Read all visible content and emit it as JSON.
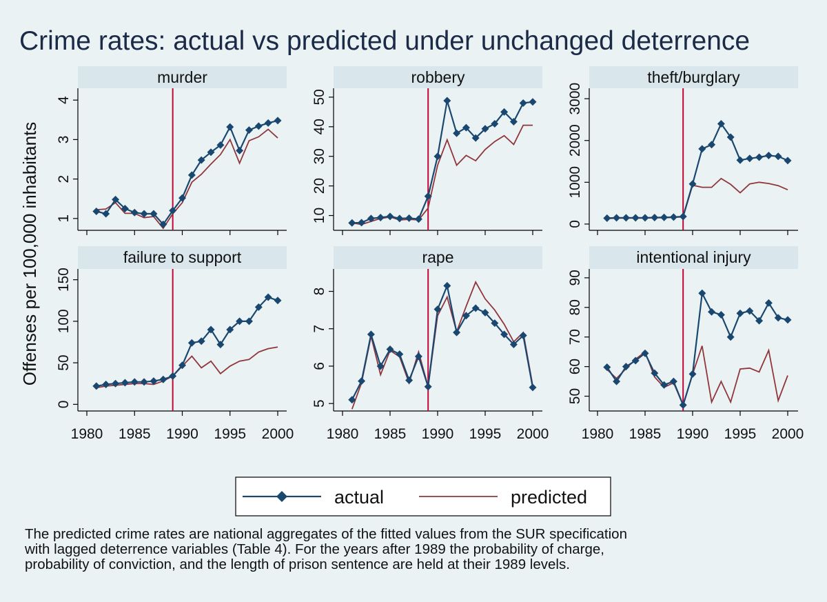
{
  "chart_data": {
    "type": "line",
    "title": "Crime  rates: actual vs predicted under unchanged deterrence",
    "ylabel": "Offenses per  100,000 inhabitants",
    "xlabel": "",
    "reference_line_x": 1989,
    "legend": {
      "placement": "bottom",
      "entries": [
        "actual",
        "predicted"
      ]
    },
    "colors": {
      "actual": "#1a476f",
      "predicted": "#90353b",
      "vline": "#c10534",
      "strip": "#d9e6eb",
      "background": "#eaf2f3"
    },
    "x": [
      1981,
      1982,
      1983,
      1984,
      1985,
      1986,
      1987,
      1988,
      1989,
      1990,
      1991,
      1992,
      1993,
      1994,
      1995,
      1996,
      1997,
      1998,
      1999,
      2000
    ],
    "xticks": [
      1980,
      1985,
      1990,
      1995,
      2000
    ],
    "xlim": [
      1980,
      2000
    ],
    "panels": [
      {
        "name": "murder",
        "ylim": [
          0.7,
          4.3
        ],
        "yticks": [
          1,
          2,
          3,
          4
        ],
        "actual": [
          1.18,
          1.12,
          1.48,
          1.25,
          1.15,
          1.12,
          1.12,
          0.85,
          1.2,
          1.52,
          2.1,
          2.48,
          2.68,
          2.86,
          3.32,
          2.72,
          3.24,
          3.34,
          3.42,
          3.48
        ],
        "predicted": [
          1.22,
          1.24,
          1.4,
          1.13,
          1.13,
          1.02,
          1.05,
          0.75,
          1.12,
          1.4,
          1.92,
          2.12,
          2.38,
          2.62,
          3.0,
          2.4,
          2.97,
          3.07,
          3.26,
          3.04
        ]
      },
      {
        "name": "robbery",
        "ylim": [
          5,
          53
        ],
        "yticks": [
          10,
          20,
          30,
          40,
          50
        ],
        "actual": [
          7.5,
          7.6,
          9.0,
          9.3,
          9.7,
          9.0,
          9.1,
          8.8,
          16.5,
          30.0,
          48.8,
          37.8,
          39.7,
          36.2,
          39.3,
          41.0,
          45.0,
          41.7,
          48.0,
          48.4
        ],
        "predicted": [
          7.5,
          7.0,
          8.0,
          9.0,
          9.5,
          8.5,
          8.7,
          8.5,
          12.5,
          27.0,
          35.6,
          27.0,
          30.3,
          28.5,
          32.3,
          35.0,
          37.0,
          34.0,
          40.5,
          40.5
        ]
      },
      {
        "name": "theft/burglary",
        "ylim": [
          -150,
          3250
        ],
        "yticks": [
          0,
          1000,
          2000,
          3000
        ],
        "actual": [
          140,
          150,
          150,
          150,
          150,
          155,
          160,
          165,
          180,
          960,
          1800,
          1900,
          2400,
          2080,
          1530,
          1570,
          1600,
          1640,
          1620,
          1520
        ],
        "predicted": [
          130,
          140,
          140,
          140,
          140,
          150,
          150,
          160,
          170,
          930,
          880,
          880,
          1090,
          950,
          750,
          960,
          1000,
          970,
          920,
          820
        ]
      },
      {
        "name": "failure to support",
        "ylim": [
          -8,
          163
        ],
        "yticks": [
          0,
          50,
          100,
          150
        ],
        "actual": [
          22,
          24,
          25,
          26,
          27,
          27,
          28,
          30,
          34,
          47,
          74,
          76,
          90,
          72,
          90,
          100,
          100,
          117,
          129,
          125
        ],
        "predicted": [
          20,
          22,
          23,
          24,
          25,
          25,
          24,
          28,
          34,
          46,
          58,
          44,
          52,
          37,
          46,
          52,
          54,
          63,
          67,
          69
        ]
      },
      {
        "name": "rape",
        "ylim": [
          4.8,
          8.6
        ],
        "yticks": [
          5,
          6,
          7,
          8
        ],
        "actual": [
          5.1,
          5.6,
          6.85,
          6.0,
          6.45,
          6.32,
          5.62,
          6.26,
          5.45,
          7.52,
          8.15,
          6.9,
          7.35,
          7.55,
          7.43,
          7.15,
          6.85,
          6.58,
          6.82,
          5.43
        ],
        "predicted": [
          4.85,
          5.55,
          6.8,
          5.77,
          6.42,
          6.25,
          5.55,
          6.38,
          5.45,
          7.35,
          7.85,
          6.92,
          7.6,
          8.25,
          7.8,
          7.5,
          7.12,
          6.65,
          6.9,
          5.48
        ]
      },
      {
        "name": "intentional injury",
        "ylim": [
          45,
          93
        ],
        "yticks": [
          50,
          60,
          70,
          80,
          90
        ],
        "actual": [
          59.8,
          55.0,
          60.0,
          62.0,
          64.5,
          57.8,
          53.8,
          55.0,
          47.0,
          57.5,
          84.8,
          78.5,
          77.5,
          70.0,
          78.0,
          78.8,
          75.5,
          81.5,
          76.5,
          75.8
        ],
        "predicted": [
          59.0,
          56.0,
          59.3,
          62.5,
          65.0,
          56.5,
          53.0,
          54.5,
          47.0,
          57.5,
          67.0,
          48.0,
          55.0,
          48.0,
          59.2,
          59.5,
          58.2,
          65.5,
          48.5,
          57.0
        ]
      }
    ]
  },
  "note_lines": [
    "The predicted crime  rates are national aggregates of the fitted values from the SUR specification",
    "with lagged deterrence variables (Table 4). For the years after 1989 the probability of charge,",
    "probability of  conviction, and the length of prison sentence are held at their 1989 levels."
  ]
}
